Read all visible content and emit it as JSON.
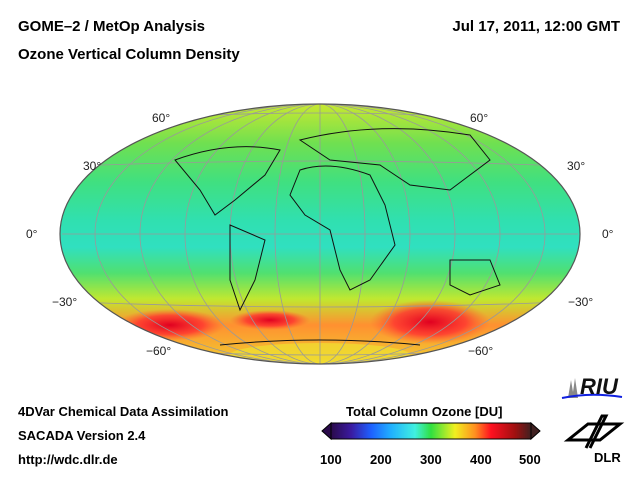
{
  "header": {
    "title": "GOME–2 / MetOp Analysis",
    "subtitle": "Ozone Vertical Column Density",
    "datetime": "Jul 17, 2011, 12:00 GMT"
  },
  "map": {
    "projection": "Hammer-Aitoff global",
    "lat_labels": {
      "n60": "60°",
      "n30": "30°",
      "eq": "0°",
      "s30": "−30°",
      "s60": "−60°"
    }
  },
  "footer": {
    "line1": "4DVar Chemical Data Assimilation",
    "line2": "SACADA Version 2.4",
    "line3": "http://wdc.dlr.de"
  },
  "colorbar": {
    "title": "Total Column Ozone [DU]",
    "ticks": [
      "100",
      "200",
      "300",
      "400",
      "500"
    ],
    "range": [
      100,
      500
    ],
    "colors": [
      "#2a0a4a",
      "#3a1aa0",
      "#1e60ff",
      "#20b0ff",
      "#40f0e0",
      "#30e040",
      "#f0f020",
      "#ff9020",
      "#ff1020",
      "#a01010",
      "#402020"
    ]
  },
  "logos": {
    "riu": "RIU",
    "dlr": "DLR"
  }
}
